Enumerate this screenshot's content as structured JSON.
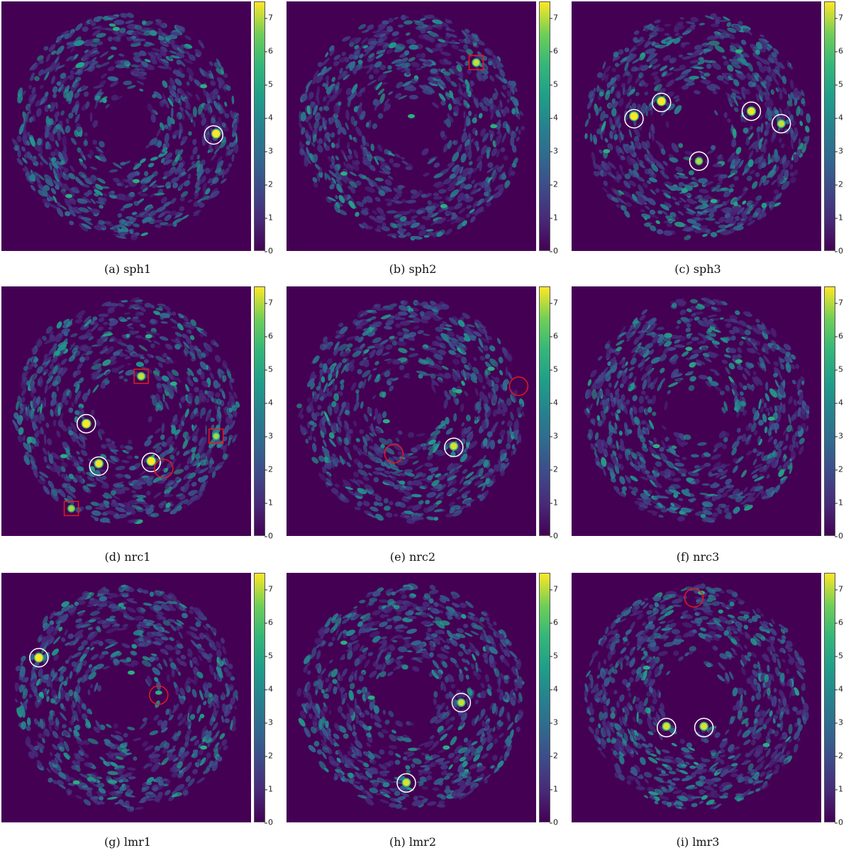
{
  "colorbar": {
    "ticks": [
      "0",
      "1",
      "2",
      "3",
      "4",
      "5",
      "6",
      "7"
    ],
    "max": 7.5
  },
  "colors": {
    "background": "#440154",
    "detection_circle": "#ffffff",
    "false_marker": "#e41a1c"
  },
  "panels": [
    {
      "caption": "(a) sph1",
      "seed": 11,
      "hot": [
        [
          0.86,
          0.53,
          1.0
        ]
      ],
      "mild": [
        [
          0.46,
          0.11
        ],
        [
          0.81,
          0.34
        ],
        [
          0.27,
          0.78
        ],
        [
          0.54,
          0.72
        ]
      ],
      "white": [
        [
          0.85,
          0.535
        ]
      ],
      "red_circles": [],
      "red_squares": []
    },
    {
      "caption": "(b) sph2",
      "seed": 23,
      "hot": [
        [
          0.76,
          0.245,
          0.7
        ]
      ],
      "mild": [
        [
          0.5,
          0.46
        ],
        [
          0.23,
          0.69
        ],
        [
          0.63,
          0.82
        ],
        [
          0.83,
          0.5
        ]
      ],
      "white": [],
      "red_circles": [],
      "red_squares": [
        [
          0.76,
          0.245
        ]
      ]
    },
    {
      "caption": "(c) sph3",
      "seed": 37,
      "hot": [
        [
          0.25,
          0.46,
          1.0
        ],
        [
          0.36,
          0.4,
          1.0
        ],
        [
          0.72,
          0.44,
          0.9
        ],
        [
          0.84,
          0.49,
          0.7
        ],
        [
          0.51,
          0.64,
          0.6
        ]
      ],
      "mild": [
        [
          0.57,
          0.8
        ],
        [
          0.14,
          0.6
        ],
        [
          0.67,
          0.2
        ]
      ],
      "white": [
        [
          0.25,
          0.47
        ],
        [
          0.36,
          0.405
        ],
        [
          0.72,
          0.44
        ],
        [
          0.84,
          0.49
        ],
        [
          0.51,
          0.64
        ]
      ],
      "red_circles": [],
      "red_squares": []
    },
    {
      "caption": "(d) nrc1",
      "seed": 41,
      "hot": [
        [
          0.34,
          0.55,
          1.0
        ],
        [
          0.39,
          0.71,
          0.9
        ],
        [
          0.6,
          0.7,
          1.0
        ],
        [
          0.28,
          0.89,
          0.5
        ],
        [
          0.86,
          0.6,
          0.5
        ],
        [
          0.56,
          0.36,
          0.7
        ]
      ],
      "mild": [
        [
          0.59,
          0.2
        ],
        [
          0.25,
          0.68
        ],
        [
          0.69,
          0.39
        ]
      ],
      "white": [
        [
          0.34,
          0.55
        ],
        [
          0.39,
          0.72
        ],
        [
          0.6,
          0.705
        ]
      ],
      "red_circles": [
        [
          0.65,
          0.73
        ]
      ],
      "red_squares": [
        [
          0.56,
          0.36
        ],
        [
          0.86,
          0.6
        ],
        [
          0.28,
          0.89
        ]
      ]
    },
    {
      "caption": "(e) nrc2",
      "seed": 53,
      "hot": [
        [
          0.67,
          0.64,
          0.8
        ]
      ],
      "mild": [
        [
          0.69,
          0.42
        ],
        [
          0.4,
          0.54
        ],
        [
          0.82,
          0.33
        ]
      ],
      "white": [
        [
          0.67,
          0.645
        ]
      ],
      "red_circles": [
        [
          0.93,
          0.4
        ],
        [
          0.43,
          0.67
        ]
      ],
      "red_squares": []
    },
    {
      "caption": "(f) nrc3",
      "seed": 67,
      "hot": [],
      "mild": [
        [
          0.34,
          0.64
        ],
        [
          0.67,
          0.3
        ],
        [
          0.8,
          0.53
        ],
        [
          0.47,
          0.25
        ]
      ],
      "white": [],
      "red_circles": [],
      "red_squares": []
    },
    {
      "caption": "(g) lmr1",
      "seed": 79,
      "hot": [
        [
          0.15,
          0.34,
          1.0
        ]
      ],
      "mild": [
        [
          0.52,
          0.4
        ],
        [
          0.63,
          0.48
        ],
        [
          0.3,
          0.84
        ],
        [
          0.81,
          0.7
        ]
      ],
      "white": [
        [
          0.15,
          0.34
        ]
      ],
      "red_circles": [
        [
          0.63,
          0.49
        ]
      ],
      "red_squares": []
    },
    {
      "caption": "(h) lmr2",
      "seed": 83,
      "hot": [
        [
          0.7,
          0.52,
          0.7
        ],
        [
          0.48,
          0.84,
          0.8
        ]
      ],
      "mild": [
        [
          0.23,
          0.28
        ],
        [
          0.34,
          0.5
        ],
        [
          0.64,
          0.7
        ]
      ],
      "white": [
        [
          0.7,
          0.52
        ],
        [
          0.48,
          0.842
        ]
      ],
      "red_circles": [],
      "red_squares": []
    },
    {
      "caption": "(i) lmr3",
      "seed": 97,
      "hot": [
        [
          0.38,
          0.615,
          0.8
        ],
        [
          0.53,
          0.615,
          0.8
        ]
      ],
      "mild": [
        [
          0.52,
          0.08
        ],
        [
          0.3,
          0.38
        ],
        [
          0.78,
          0.69
        ]
      ],
      "white": [
        [
          0.38,
          0.62
        ],
        [
          0.53,
          0.62
        ]
      ],
      "red_circles": [
        [
          0.49,
          0.1
        ]
      ],
      "red_squares": []
    }
  ]
}
